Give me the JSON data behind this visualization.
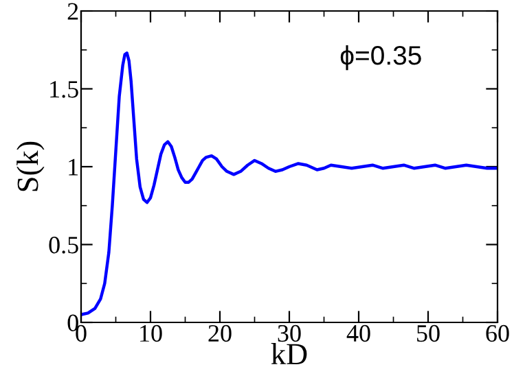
{
  "chart_data": {
    "type": "line",
    "xlabel": "kD",
    "ylabel": "S(k)",
    "annotations": [
      "ϕ=0.35"
    ],
    "series": [
      {
        "color": "#0000ff",
        "x": [
          0,
          1,
          2,
          2.8,
          3.4,
          4,
          4.5,
          5,
          5.5,
          6,
          6.3,
          6.6,
          6.9,
          7.2,
          7.6,
          8,
          8.5,
          9,
          9.5,
          10,
          10.5,
          11,
          11.5,
          12,
          12.5,
          13,
          13.5,
          14,
          14.5,
          15,
          15.5,
          16,
          16.5,
          17,
          17.5,
          18,
          18.8,
          19.5,
          20.3,
          21,
          22,
          23,
          24,
          25,
          26,
          27,
          28,
          29,
          30,
          31.3,
          32.5,
          34,
          35,
          36,
          37.5,
          39,
          40.5,
          42,
          43.5,
          45,
          46.5,
          48,
          49.5,
          51,
          52.5,
          54,
          55.5,
          57,
          58.5,
          60
        ],
        "values": [
          0.05,
          0.06,
          0.09,
          0.15,
          0.25,
          0.45,
          0.75,
          1.1,
          1.45,
          1.65,
          1.72,
          1.73,
          1.68,
          1.55,
          1.3,
          1.05,
          0.87,
          0.79,
          0.77,
          0.8,
          0.88,
          0.98,
          1.08,
          1.14,
          1.16,
          1.13,
          1.06,
          0.98,
          0.93,
          0.9,
          0.9,
          0.92,
          0.96,
          1.0,
          1.04,
          1.06,
          1.07,
          1.05,
          1.0,
          0.97,
          0.95,
          0.97,
          1.01,
          1.04,
          1.02,
          0.99,
          0.97,
          0.98,
          1.0,
          1.02,
          1.01,
          0.98,
          0.99,
          1.01,
          1.0,
          0.99,
          1.0,
          1.01,
          0.99,
          1.0,
          1.01,
          0.99,
          1.0,
          1.01,
          0.99,
          1.0,
          1.01,
          1.0,
          0.99,
          0.99
        ]
      }
    ],
    "xlim": [
      0,
      60
    ],
    "xticks": [
      0,
      10,
      20,
      30,
      40,
      50,
      60
    ],
    "ylim": [
      0,
      2
    ],
    "yticks": [
      0,
      0.5,
      1,
      1.5,
      2
    ],
    "grid": false,
    "legend": false,
    "marker": "none",
    "line_style": "solid"
  }
}
